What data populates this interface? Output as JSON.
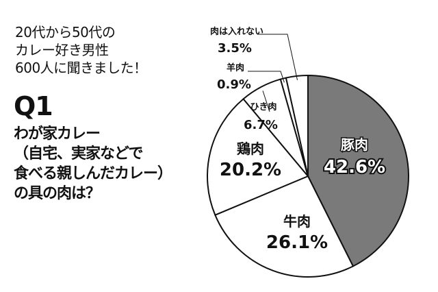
{
  "intro": {
    "lines": [
      "20代から50代の",
      "カレー好き男性",
      "600人に聞きました！"
    ]
  },
  "question": {
    "label": "Q1",
    "lines": [
      "わが家カレー",
      "（自宅、実家などで",
      "食べる親しんだカレー）",
      "の具の肉は？"
    ]
  },
  "colors": {
    "highlight": "#7a7a7a",
    "default": "#ffffff",
    "stroke": "#111111"
  },
  "chart_data": {
    "type": "pie",
    "slices": [
      {
        "label": "豚肉",
        "value": 42.6,
        "display": "42.6%",
        "highlight": true
      },
      {
        "label": "牛肉",
        "value": 26.1,
        "display": "26.1%"
      },
      {
        "label": "鶏肉",
        "value": 20.2,
        "display": "20.2%"
      },
      {
        "label": "ひき肉",
        "value": 6.7,
        "display": "6.7%"
      },
      {
        "label": "羊肉",
        "value": 0.9,
        "display": "0.9%"
      },
      {
        "label": "肉は入れない",
        "value": 3.5,
        "display": "3.5%"
      }
    ],
    "start": "12 o'clock",
    "direction": "clockwise"
  }
}
